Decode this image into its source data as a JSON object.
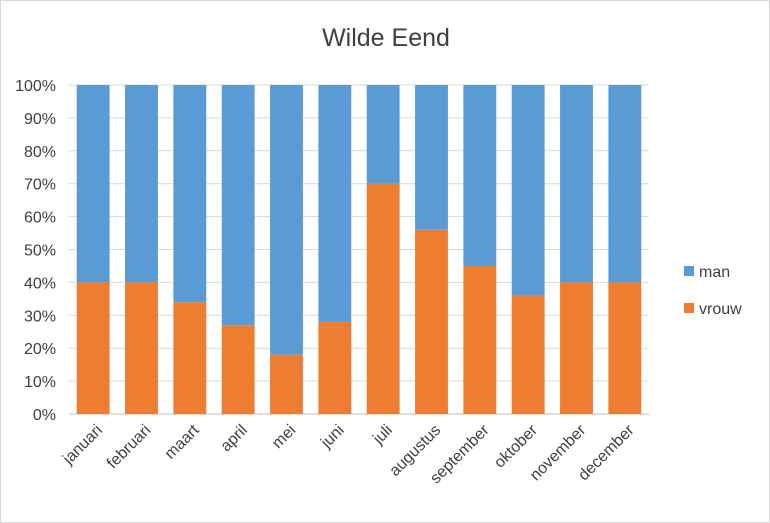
{
  "chart_data": {
    "type": "bar",
    "stacked": true,
    "percent": true,
    "title": "Wilde Eend",
    "categories": [
      "januari",
      "februari",
      "maart",
      "april",
      "mei",
      "juni",
      "juli",
      "augustus",
      "september",
      "oktober",
      "november",
      "december"
    ],
    "series": [
      {
        "name": "vrouw",
        "color": "#ed7d31",
        "values": [
          40,
          40,
          34,
          27,
          18,
          28,
          70,
          56,
          45,
          36,
          40,
          40
        ]
      },
      {
        "name": "man",
        "color": "#5b9bd5",
        "values": [
          60,
          60,
          66,
          73,
          82,
          72,
          30,
          44,
          55,
          64,
          60,
          60
        ]
      }
    ],
    "y_ticks": [
      "0%",
      "10%",
      "20%",
      "30%",
      "40%",
      "50%",
      "60%",
      "70%",
      "80%",
      "90%",
      "100%"
    ],
    "ylim": [
      0,
      100
    ],
    "grid": true,
    "legend": {
      "position": "right",
      "order": [
        "man",
        "vrouw"
      ]
    }
  }
}
